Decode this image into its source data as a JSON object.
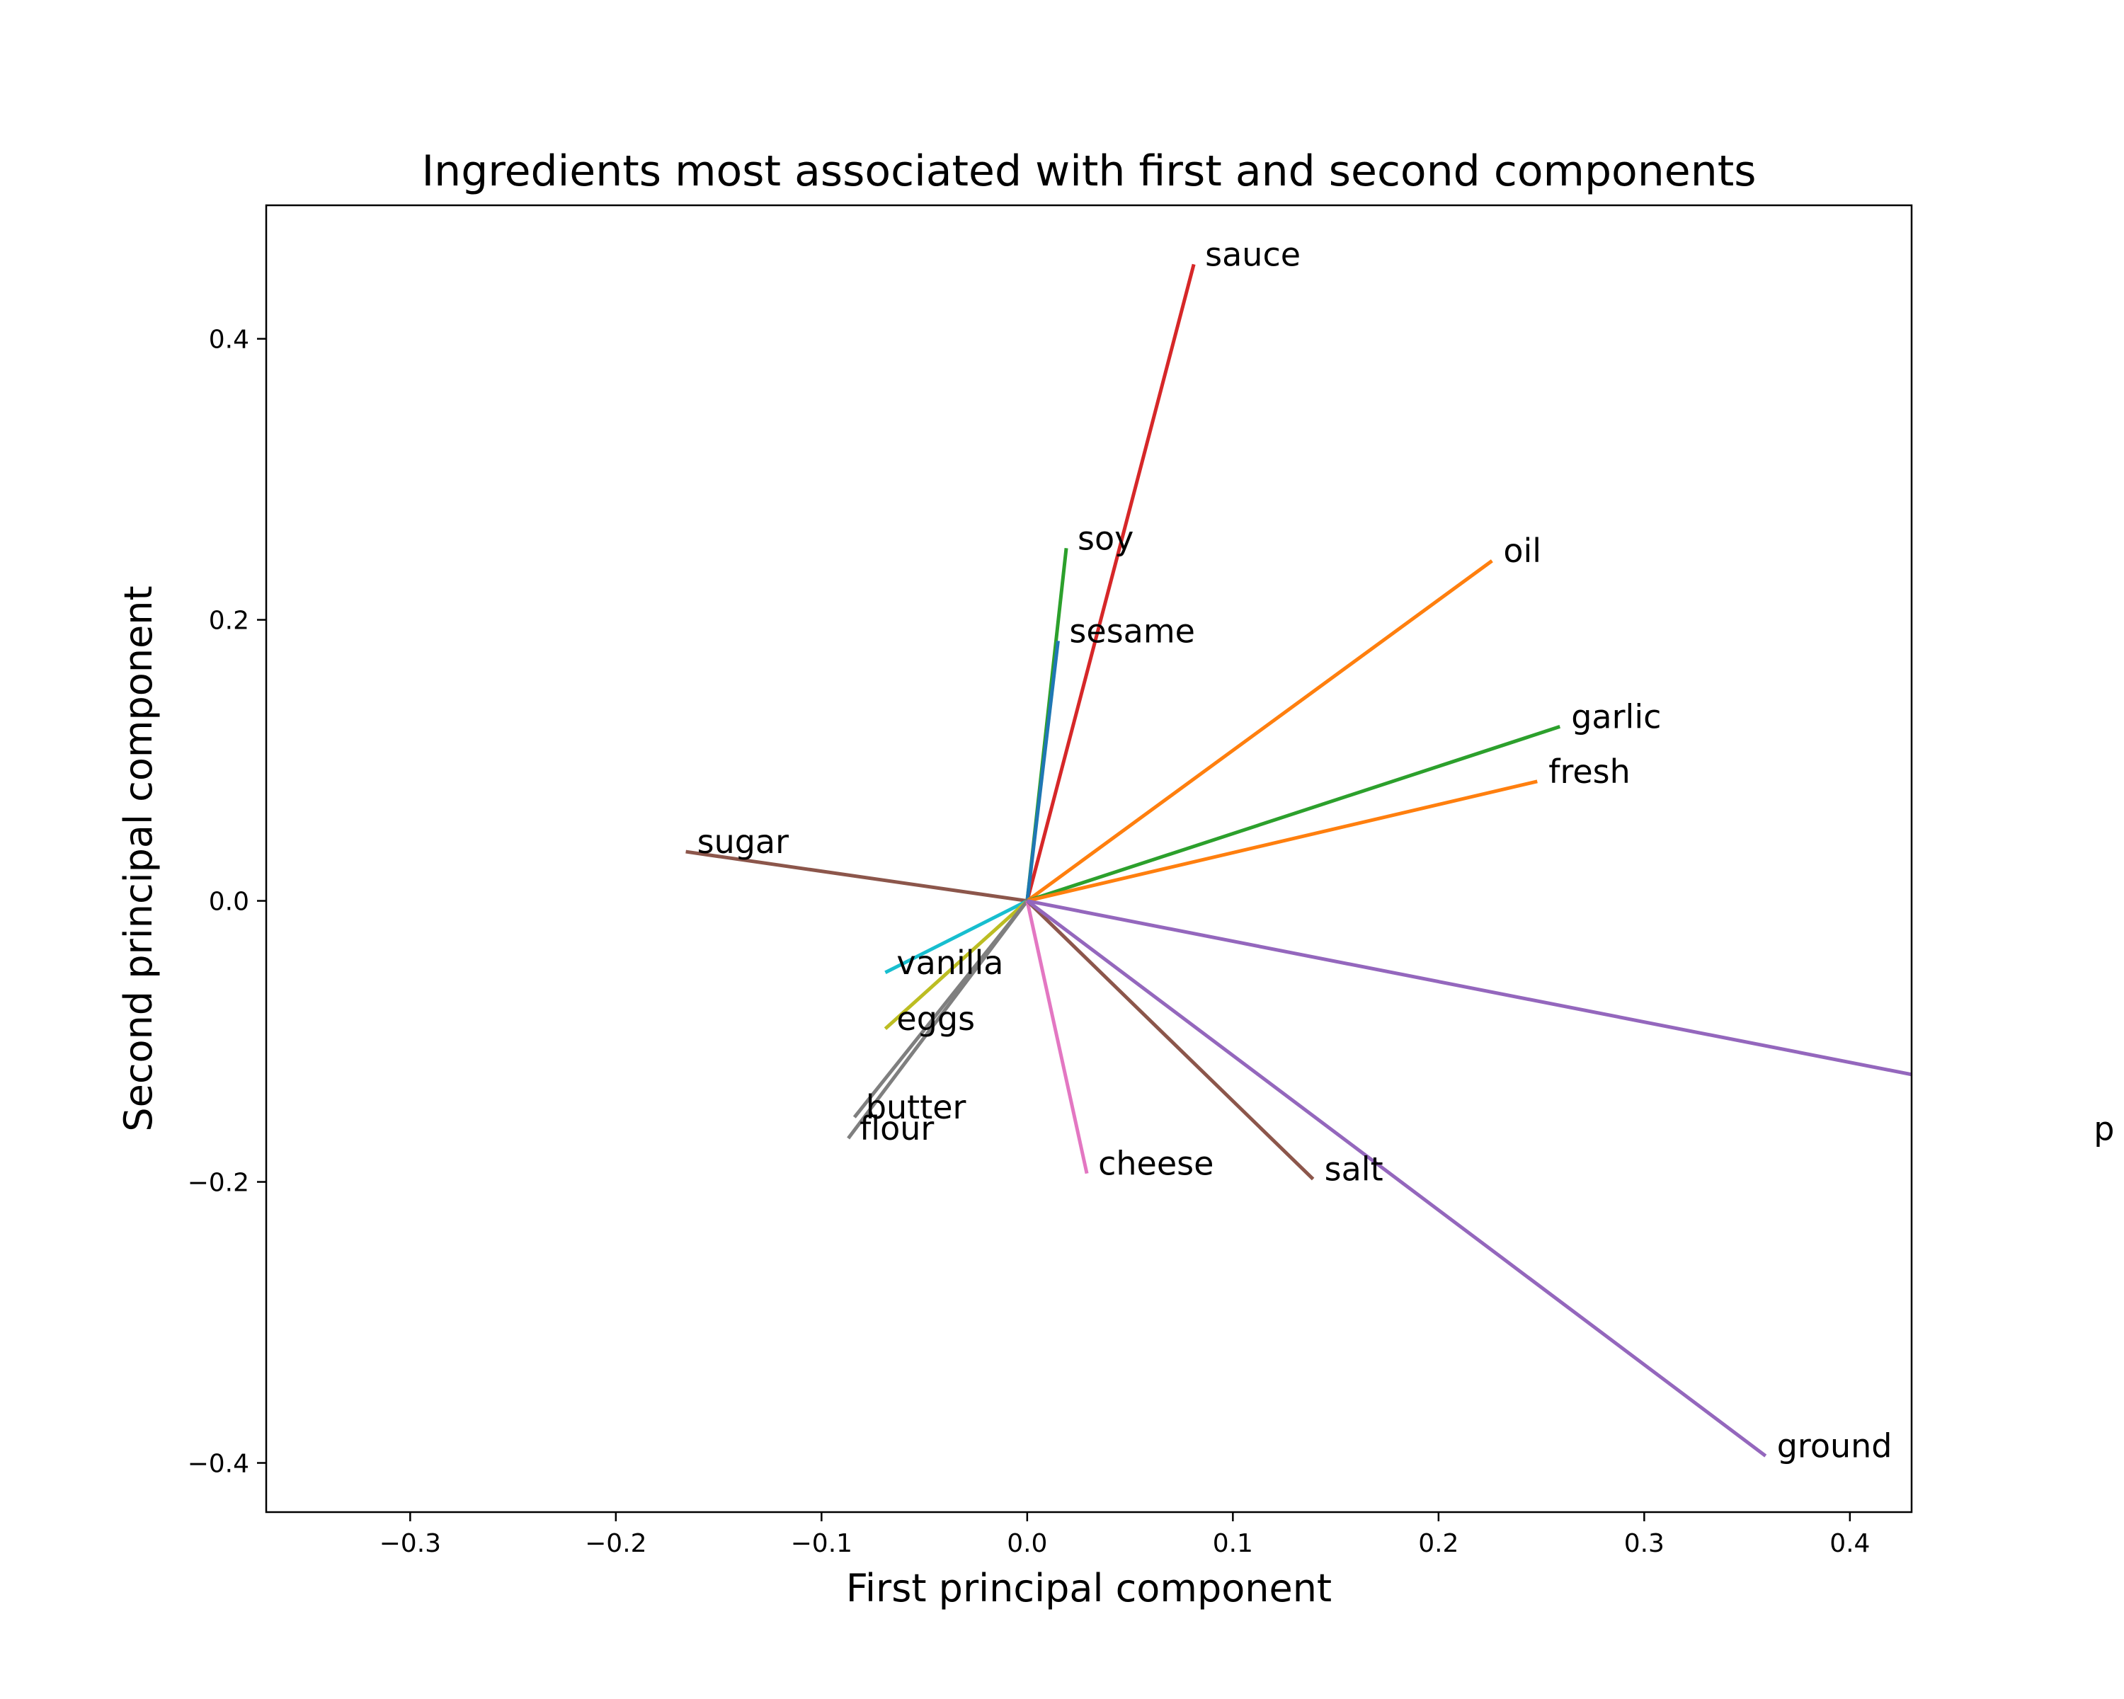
{
  "chart_data": {
    "type": "biplot",
    "title": "Ingredients most associated with first and second components",
    "xlabel": "First principal component",
    "ylabel": "Second principal component",
    "xlim": [
      -0.37,
      0.43
    ],
    "ylim": [
      -0.435,
      0.495
    ],
    "xticks": [
      -0.3,
      -0.2,
      -0.1,
      0.0,
      0.1,
      0.2,
      0.3,
      0.4
    ],
    "yticks": [
      -0.4,
      -0.2,
      0.0,
      0.2,
      0.4
    ],
    "xtick_labels": [
      "−0.3",
      "−0.2",
      "−0.1",
      "0.0",
      "0.1",
      "0.2",
      "0.3",
      "0.4"
    ],
    "ytick_labels": [
      "−0.4",
      "−0.2",
      "0.0",
      "0.2",
      "0.4"
    ],
    "grid": false,
    "vectors": [
      {
        "name": "sauce",
        "x": 0.081,
        "y": 0.453,
        "color": "#d62728"
      },
      {
        "name": "soy",
        "x": 0.019,
        "y": 0.251,
        "color": "#2ca02c"
      },
      {
        "name": "sesame",
        "x": 0.015,
        "y": 0.185,
        "color": "#1f77b4"
      },
      {
        "name": "oil",
        "x": 0.226,
        "y": 0.242,
        "color": "#ff7f0e"
      },
      {
        "name": "garlic",
        "x": 0.259,
        "y": 0.124,
        "color": "#2ca02c"
      },
      {
        "name": "fresh",
        "x": 0.248,
        "y": 0.085,
        "color": "#ff7f0e"
      },
      {
        "name": "sugar",
        "x": -0.166,
        "y": 0.035,
        "color": "#8c564b"
      },
      {
        "name": "vanilla",
        "x": -0.069,
        "y": -0.051,
        "color": "#17becf"
      },
      {
        "name": "eggs",
        "x": -0.069,
        "y": -0.091,
        "color": "#bcbd22"
      },
      {
        "name": "butter",
        "x": -0.084,
        "y": -0.154,
        "color": "#7f7f7f"
      },
      {
        "name": "flour",
        "x": -0.087,
        "y": -0.169,
        "color": "#7f7f7f"
      },
      {
        "name": "cheese",
        "x": 0.029,
        "y": -0.194,
        "color": "#e377c2"
      },
      {
        "name": "salt",
        "x": 0.139,
        "y": -0.198,
        "color": "#8c564b"
      },
      {
        "name": "ground",
        "x": 0.359,
        "y": -0.395,
        "color": "#9467bd"
      },
      {
        "name": "pepper",
        "x": 0.522,
        "y": -0.15,
        "color": "#9467bd"
      }
    ],
    "clipped_labels": [
      {
        "text": "p",
        "x": 0.522,
        "y": -0.15
      }
    ]
  }
}
